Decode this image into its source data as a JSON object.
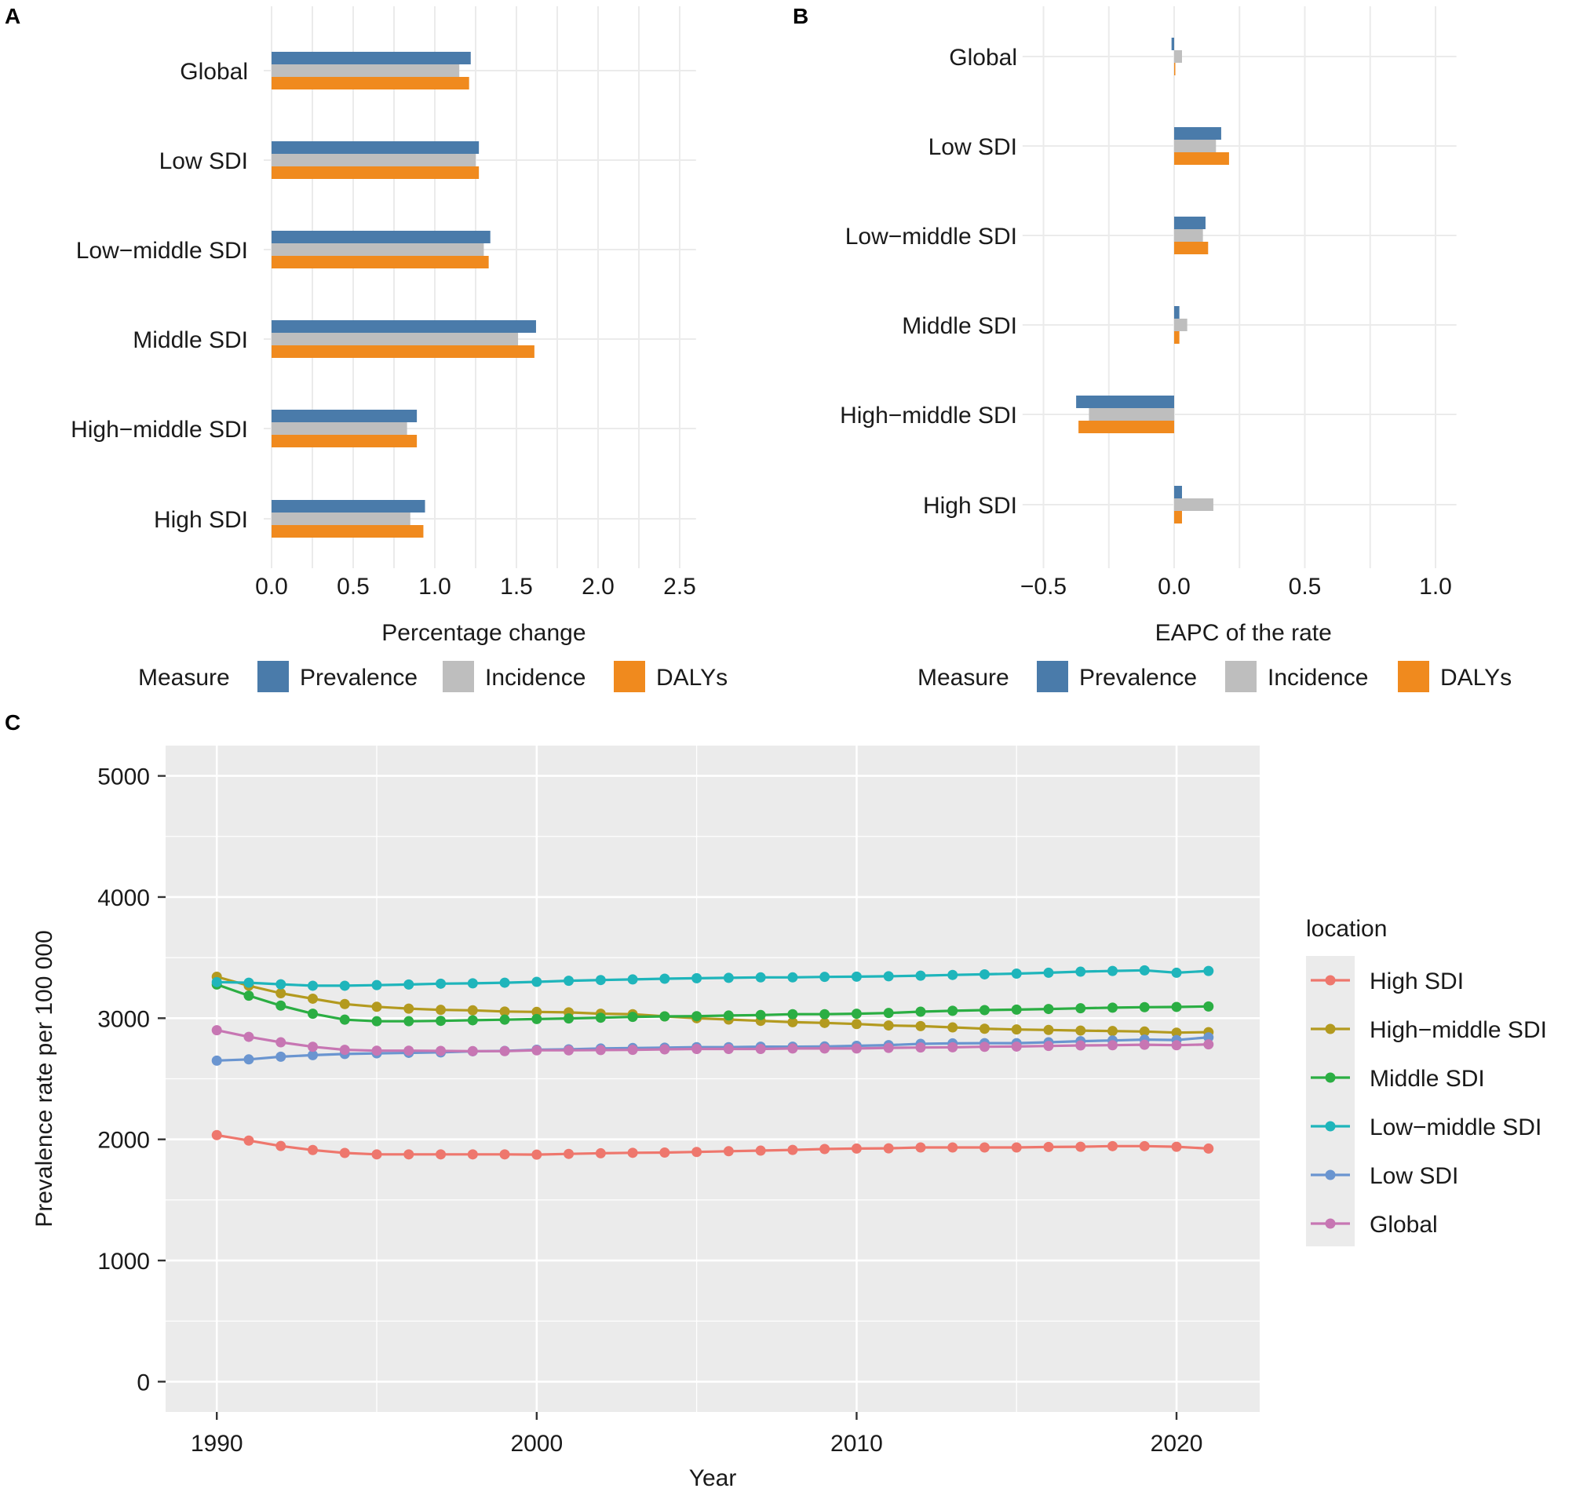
{
  "chart_data": [
    {
      "id": "A",
      "panel_label": "A",
      "type": "bar",
      "orientation": "horizontal",
      "categories": [
        "Global",
        "Low SDI",
        "Low−middle SDI",
        "Middle SDI",
        "High−middle SDI",
        "High SDI"
      ],
      "series": [
        {
          "name": "Prevalence",
          "color": "#4A7BAA",
          "values": [
            1.22,
            1.27,
            1.34,
            1.62,
            0.89,
            0.94
          ]
        },
        {
          "name": "Incidence",
          "color": "#BEBEBE",
          "values": [
            1.15,
            1.25,
            1.3,
            1.51,
            0.83,
            0.85
          ]
        },
        {
          "name": "DALYs",
          "color": "#F08A1E",
          "values": [
            1.21,
            1.27,
            1.33,
            1.61,
            0.89,
            0.93
          ]
        }
      ],
      "xlabel": "Percentage change",
      "ylabel": "",
      "xlim": [
        0,
        2.6
      ],
      "xticks": [
        0.0,
        0.5,
        1.0,
        1.5,
        2.0,
        2.5
      ],
      "xtick_labels": [
        "0.0",
        "0.5",
        "1.0",
        "1.5",
        "2.0",
        "2.5"
      ],
      "grid": true,
      "legend": {
        "title": "Measure",
        "position": "bottom",
        "entries": [
          "Prevalence",
          "Incidence",
          "DALYs"
        ]
      }
    },
    {
      "id": "B",
      "panel_label": "B",
      "type": "bar",
      "orientation": "horizontal",
      "categories": [
        "Global",
        "Low SDI",
        "Low−middle SDI",
        "Middle SDI",
        "High−middle SDI",
        "High SDI"
      ],
      "series": [
        {
          "name": "Prevalence",
          "color": "#4A7BAA",
          "values": [
            -0.01,
            0.18,
            0.12,
            0.02,
            -0.375,
            0.03
          ]
        },
        {
          "name": "Incidence",
          "color": "#BEBEBE",
          "values": [
            0.03,
            0.16,
            0.11,
            0.05,
            -0.326,
            0.15
          ]
        },
        {
          "name": "DALYs",
          "color": "#F08A1E",
          "values": [
            0.003,
            0.21,
            0.13,
            0.02,
            -0.366,
            0.03
          ]
        }
      ],
      "xlabel": "EAPC of the rate",
      "ylabel": "",
      "xlim": [
        -0.55,
        1.08
      ],
      "xticks": [
        -0.5,
        0.0,
        0.5,
        1.0
      ],
      "xtick_labels": [
        "−0.5",
        "0.0",
        "0.5",
        "1.0"
      ],
      "grid": true,
      "legend": {
        "title": "Measure",
        "position": "bottom",
        "entries": [
          "Prevalence",
          "Incidence",
          "DALYs"
        ]
      }
    },
    {
      "id": "C",
      "panel_label": "C",
      "type": "line",
      "markers": true,
      "x": [
        1990,
        1991,
        1992,
        1993,
        1994,
        1995,
        1996,
        1997,
        1998,
        1999,
        2000,
        2001,
        2002,
        2003,
        2004,
        2005,
        2006,
        2007,
        2008,
        2009,
        2010,
        2011,
        2012,
        2013,
        2014,
        2015,
        2016,
        2017,
        2018,
        2019,
        2020,
        2021
      ],
      "series": [
        {
          "name": "High SDI",
          "color": "#EE776D",
          "values": [
            2035,
            1990,
            1945,
            1912,
            1888,
            1876,
            1876,
            1876,
            1876,
            1876,
            1874,
            1880,
            1885,
            1889,
            1891,
            1896,
            1902,
            1907,
            1913,
            1920,
            1924,
            1926,
            1933,
            1933,
            1933,
            1933,
            1937,
            1939,
            1944,
            1944,
            1939,
            1924
          ]
        },
        {
          "name": "High−middle SDI",
          "color": "#B39A1F",
          "values": [
            3342,
            3268,
            3206,
            3161,
            3117,
            3094,
            3079,
            3069,
            3065,
            3055,
            3052,
            3048,
            3037,
            3033,
            3015,
            3000,
            2989,
            2978,
            2967,
            2961,
            2952,
            2940,
            2935,
            2924,
            2913,
            2907,
            2903,
            2898,
            2894,
            2890,
            2881,
            2885
          ]
        },
        {
          "name": "Middle SDI",
          "color": "#2BAE43",
          "values": [
            3278,
            3186,
            3104,
            3037,
            2988,
            2975,
            2975,
            2978,
            2983,
            2988,
            2993,
            2998,
            3004,
            3011,
            3015,
            3017,
            3022,
            3026,
            3033,
            3033,
            3037,
            3043,
            3054,
            3061,
            3067,
            3071,
            3076,
            3082,
            3087,
            3091,
            3093,
            3097
          ]
        },
        {
          "name": "Low−middle SDI",
          "color": "#1FB5BB",
          "values": [
            3298,
            3293,
            3280,
            3268,
            3268,
            3273,
            3278,
            3285,
            3288,
            3293,
            3300,
            3309,
            3315,
            3320,
            3326,
            3330,
            3333,
            3337,
            3337,
            3341,
            3343,
            3346,
            3351,
            3357,
            3362,
            3368,
            3375,
            3384,
            3390,
            3395,
            3375,
            3390
          ]
        },
        {
          "name": "Low SDI",
          "color": "#6A95D0",
          "values": [
            2650,
            2660,
            2682,
            2695,
            2705,
            2710,
            2714,
            2718,
            2727,
            2730,
            2740,
            2743,
            2750,
            2754,
            2757,
            2761,
            2761,
            2765,
            2765,
            2767,
            2772,
            2778,
            2788,
            2792,
            2794,
            2794,
            2801,
            2810,
            2816,
            2823,
            2820,
            2842
          ]
        },
        {
          "name": "Global",
          "color": "#C776B3",
          "values": [
            2901,
            2846,
            2801,
            2764,
            2739,
            2732,
            2732,
            2730,
            2728,
            2728,
            2735,
            2735,
            2737,
            2739,
            2743,
            2746,
            2746,
            2746,
            2750,
            2750,
            2750,
            2755,
            2758,
            2760,
            2764,
            2766,
            2771,
            2775,
            2777,
            2781,
            2777,
            2784
          ]
        }
      ],
      "xlabel": "Year",
      "ylabel": "Prevalence rate per 100 000",
      "xlim": [
        1988.4,
        2022.6
      ],
      "ylim": [
        -250,
        5250
      ],
      "xticks": [
        1990,
        2000,
        2010,
        2020
      ],
      "xtick_labels": [
        "1990",
        "2000",
        "2010",
        "2020"
      ],
      "yticks": [
        0,
        1000,
        2000,
        3000,
        4000,
        5000
      ],
      "ytick_labels": [
        "0",
        "1000",
        "2000",
        "3000",
        "4000",
        "5000"
      ],
      "grid": true,
      "legend": {
        "title": "location",
        "position": "right",
        "entries": [
          "High SDI",
          "High−middle SDI",
          "Middle SDI",
          "Low−middle SDI",
          "Low SDI",
          "Global"
        ]
      }
    }
  ]
}
